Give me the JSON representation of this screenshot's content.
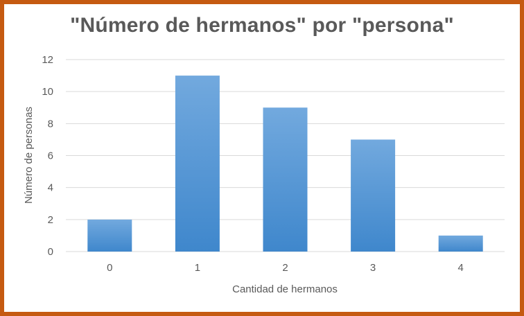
{
  "chart_data": {
    "type": "bar",
    "title": "\"Número de hermanos\" por \"persona\"",
    "xlabel": "Cantidad de hermanos",
    "ylabel": "Número de personas",
    "categories": [
      "0",
      "1",
      "2",
      "3",
      "4"
    ],
    "values": [
      2,
      11,
      9,
      7,
      1
    ],
    "ylim": [
      0,
      12
    ],
    "yticks": [
      0,
      2,
      4,
      6,
      8,
      10,
      12
    ],
    "grid": true,
    "legend": "none",
    "colors": {
      "bar_top": "#6fa8dc",
      "bar_bottom": "#3d85c6",
      "grid": "#d9d9d9",
      "border": "#c55a11",
      "text": "#595959"
    }
  }
}
